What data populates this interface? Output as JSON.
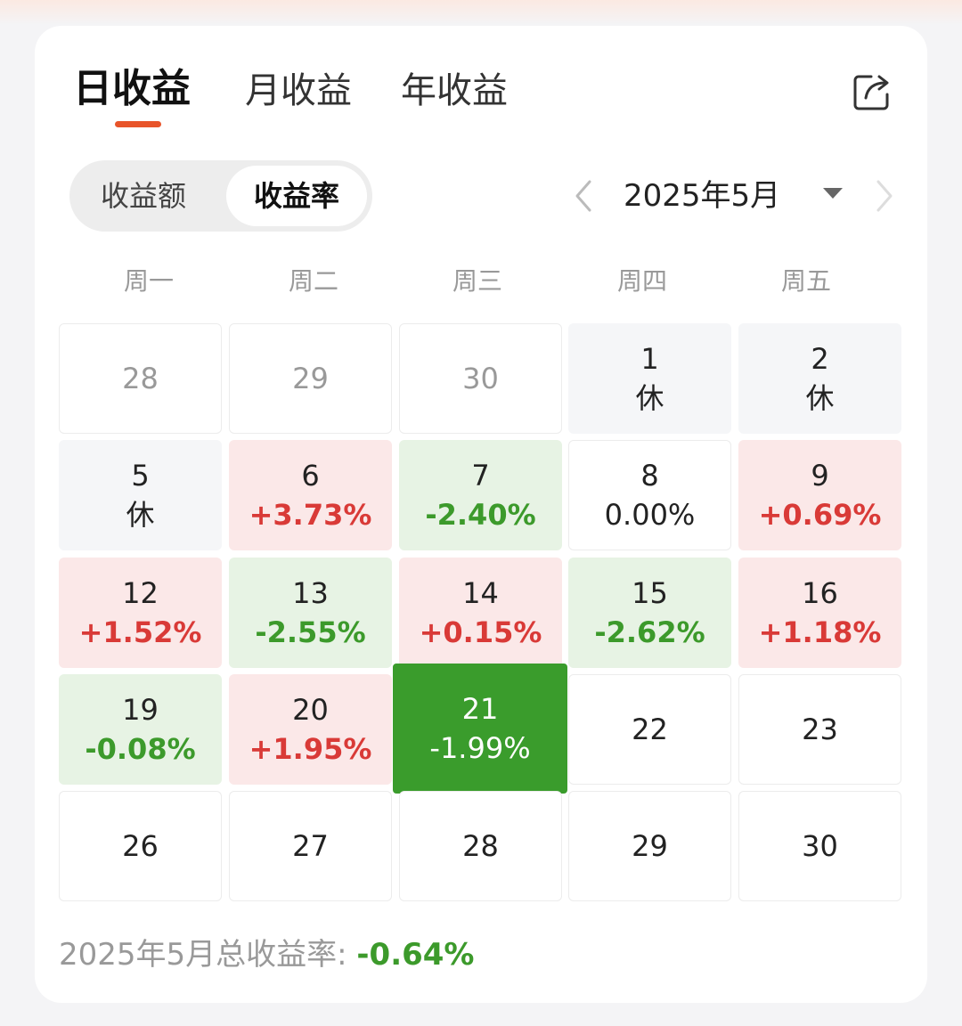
{
  "tabs": [
    {
      "label": "日收益",
      "active": true
    },
    {
      "label": "月收益",
      "active": false
    },
    {
      "label": "年收益",
      "active": false
    }
  ],
  "toggle": {
    "amount": "收益额",
    "rate": "收益率",
    "selected": "收益率"
  },
  "month_label": "2025年5月",
  "weekdays": [
    "周一",
    "周二",
    "周三",
    "周四",
    "周五"
  ],
  "days": [
    {
      "day": "28",
      "value": "",
      "kind": "out"
    },
    {
      "day": "29",
      "value": "",
      "kind": "out"
    },
    {
      "day": "30",
      "value": "",
      "kind": "out"
    },
    {
      "day": "1",
      "value": "休",
      "kind": "hol"
    },
    {
      "day": "2",
      "value": "休",
      "kind": "hol"
    },
    {
      "day": "5",
      "value": "休",
      "kind": "hol"
    },
    {
      "day": "6",
      "value": "+3.73%",
      "kind": "up"
    },
    {
      "day": "7",
      "value": "-2.40%",
      "kind": "down"
    },
    {
      "day": "8",
      "value": "0.00%",
      "kind": "flat"
    },
    {
      "day": "9",
      "value": "+0.69%",
      "kind": "up"
    },
    {
      "day": "12",
      "value": "+1.52%",
      "kind": "up"
    },
    {
      "day": "13",
      "value": "-2.55%",
      "kind": "down"
    },
    {
      "day": "14",
      "value": "+0.15%",
      "kind": "up"
    },
    {
      "day": "15",
      "value": "-2.62%",
      "kind": "down"
    },
    {
      "day": "16",
      "value": "+1.18%",
      "kind": "up"
    },
    {
      "day": "19",
      "value": "-0.08%",
      "kind": "down"
    },
    {
      "day": "20",
      "value": "+1.95%",
      "kind": "up"
    },
    {
      "day": "21",
      "value": "-1.99%",
      "kind": "sel"
    },
    {
      "day": "22",
      "value": "",
      "kind": "future"
    },
    {
      "day": "23",
      "value": "",
      "kind": "future"
    },
    {
      "day": "26",
      "value": "",
      "kind": "future"
    },
    {
      "day": "27",
      "value": "",
      "kind": "future"
    },
    {
      "day": "28",
      "value": "",
      "kind": "future"
    },
    {
      "day": "29",
      "value": "",
      "kind": "future"
    },
    {
      "day": "30",
      "value": "",
      "kind": "future"
    }
  ],
  "summary": {
    "label": "2025年5月总收益率: ",
    "value": "-0.64%"
  },
  "colors": {
    "accent": "#e8542a",
    "up": "#d93a37",
    "down": "#3c9a2b",
    "selected_bg": "#3a9c2c"
  },
  "icons": {
    "share": "share-icon",
    "prev": "chevron-left-icon",
    "next": "chevron-right-icon",
    "dropdown": "caret-down-icon"
  }
}
